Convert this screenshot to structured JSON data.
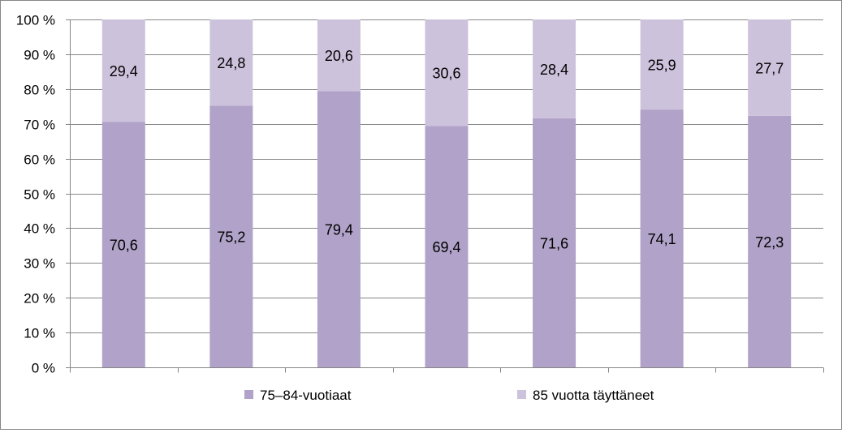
{
  "chart_data": {
    "type": "bar",
    "stacked": true,
    "percent_stacked": true,
    "categories": [
      "",
      "",
      "",
      "",
      "",
      "",
      ""
    ],
    "series": [
      {
        "name": "75–84-vuotiaat",
        "values": [
          70.6,
          75.2,
          79.4,
          69.4,
          71.6,
          74.1,
          72.3
        ],
        "labels": [
          "70,6",
          "75,2",
          "79,4",
          "69,4",
          "71,6",
          "74,1",
          "72,3"
        ],
        "color": "#b0a2c8"
      },
      {
        "name": "85 vuotta täyttäneet",
        "values": [
          29.4,
          24.8,
          20.6,
          30.6,
          28.4,
          25.9,
          27.7
        ],
        "labels": [
          "29,4",
          "24,8",
          "20,6",
          "30,6",
          "28,4",
          "25,9",
          "27,7"
        ],
        "color": "#cdc2dc"
      }
    ],
    "ylim": [
      0,
      100
    ],
    "yticks": [
      0,
      10,
      20,
      30,
      40,
      50,
      60,
      70,
      80,
      90,
      100
    ],
    "ytick_labels": [
      "0 %",
      "10 %",
      "20 %",
      "30 %",
      "40 %",
      "50 %",
      "60 %",
      "70 %",
      "80 %",
      "90 %",
      "100 %"
    ],
    "grid": true,
    "legend_position": "bottom",
    "title": "",
    "xlabel": "",
    "ylabel": ""
  }
}
